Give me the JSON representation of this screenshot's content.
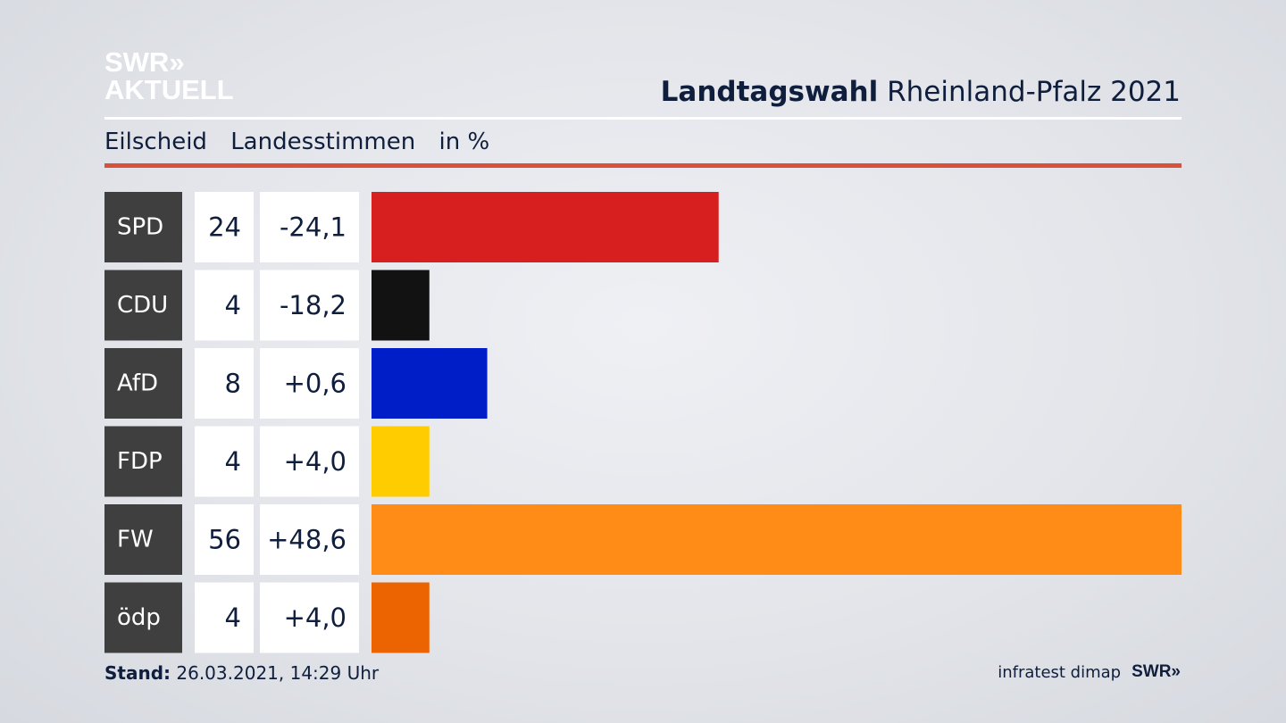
{
  "header": {
    "logo_line1": "SWR»",
    "logo_line2": "AKTUELL",
    "title_bold": "Landtagswahl",
    "title_rest": "Rheinland-Pfalz 2021"
  },
  "subheader": {
    "place": "Eilscheid",
    "measure": "Landesstimmen",
    "unit": "in %"
  },
  "footer": {
    "stand_label": "Stand:",
    "stand_value": "26.03.2021, 14:29 Uhr",
    "source": "infratest dimap",
    "brand": "SWR»"
  },
  "colors": {
    "accent_red": "#d9513b",
    "label_box": "#3f3f3f"
  },
  "chart_data": {
    "type": "bar",
    "orientation": "horizontal",
    "categories": [
      "SPD",
      "CDU",
      "AfD",
      "FDP",
      "FW",
      "ödp"
    ],
    "values": [
      24,
      4,
      8,
      4,
      56,
      4
    ],
    "changes": [
      "-24,1",
      "-18,2",
      "+0,6",
      "+4,0",
      "+48,6",
      "+4,0"
    ],
    "colors": [
      "#d81f20",
      "#121212",
      "#001ec8",
      "#ffcc00",
      "#ff8c17",
      "#ec6402"
    ],
    "xlim": [
      0,
      56
    ],
    "unit": "%",
    "title": "Landtagswahl Rheinland-Pfalz 2021",
    "subtitle": "Eilscheid  Landesstimmen  in %"
  }
}
